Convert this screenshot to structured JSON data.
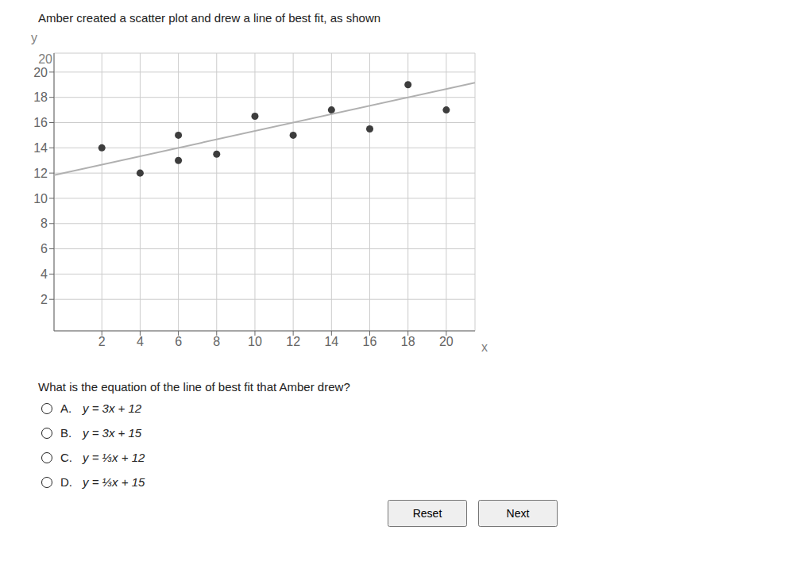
{
  "chart_data": {
    "type": "scatter",
    "title": "Amber created a scatter plot and drew a line of best fit, as shown",
    "xlabel": "x",
    "ylabel": "y",
    "xlim": [
      -0.5,
      21.5
    ],
    "ylim": [
      -0.5,
      21.5
    ],
    "xticks": [
      2,
      4,
      6,
      8,
      10,
      12,
      14,
      16,
      18,
      20
    ],
    "yticks": [
      2,
      4,
      6,
      8,
      10,
      12,
      14,
      16,
      18,
      20
    ],
    "grid": true,
    "series": [
      {
        "type": "scatter",
        "marker": "circle",
        "color": "#3d3d3d",
        "x": [
          2,
          4,
          6,
          6,
          8,
          10,
          12,
          14,
          16,
          18,
          20
        ],
        "values": [
          14,
          12,
          13,
          15,
          13.5,
          16.5,
          15,
          17,
          15.5,
          19,
          17
        ]
      },
      {
        "type": "line",
        "line_style": "solid",
        "color": "#b0b0b0",
        "x": [
          -0.5,
          21.5
        ],
        "values": [
          11.83335,
          19.16595
        ]
      }
    ],
    "annotations": [
      "20",
      "What is the equation of the line of best fit that Amber drew?",
      "A.",
      "y = 3x + 12",
      "B.",
      "y = 3x + 15",
      "C.",
      "y = ⅓x + 12",
      "D.",
      "y = ⅓x + 15",
      "Reset",
      "Next"
    ]
  }
}
